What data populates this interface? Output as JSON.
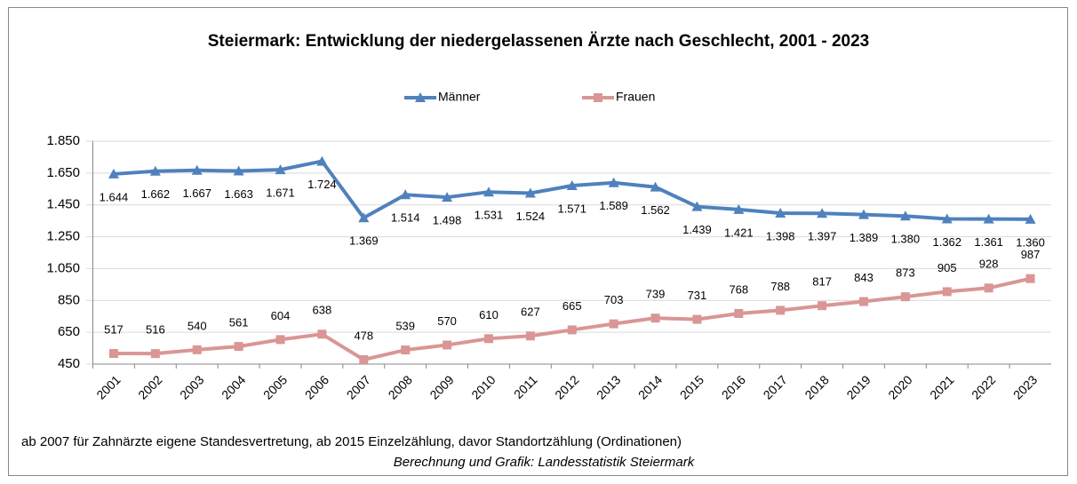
{
  "chart_data": {
    "type": "line",
    "title": "Steiermark: Entwicklung der niedergelassenen Ärzte nach Geschlecht, 2001 - 2023",
    "categories": [
      "2001",
      "2002",
      "2003",
      "2004",
      "2005",
      "2006",
      "2007",
      "2008",
      "2009",
      "2010",
      "2011",
      "2012",
      "2013",
      "2014",
      "2015",
      "2016",
      "2017",
      "2018",
      "2019",
      "2020",
      "2021",
      "2022",
      "2023"
    ],
    "series": [
      {
        "name": "Männer",
        "color": "#4f81bd",
        "marker": "triangle",
        "values": [
          1644,
          1662,
          1667,
          1663,
          1671,
          1724,
          1369,
          1514,
          1498,
          1531,
          1524,
          1571,
          1589,
          1562,
          1439,
          1421,
          1398,
          1397,
          1389,
          1380,
          1362,
          1361,
          1360
        ],
        "value_labels": [
          "1.644",
          "1.662",
          "1.667",
          "1.663",
          "1.671",
          "1.724",
          "1.369",
          "1.514",
          "1.498",
          "1.531",
          "1.524",
          "1.571",
          "1.589",
          "1.562",
          "1.439",
          "1.421",
          "1.398",
          "1.397",
          "1.389",
          "1.380",
          "1.362",
          "1.361",
          "1.360"
        ]
      },
      {
        "name": "Frauen",
        "color": "#d99694",
        "marker": "square",
        "values": [
          517,
          516,
          540,
          561,
          604,
          638,
          478,
          539,
          570,
          610,
          627,
          665,
          703,
          739,
          731,
          768,
          788,
          817,
          843,
          873,
          905,
          928,
          987
        ]
      }
    ],
    "ylim": [
      450,
      1850
    ],
    "yticks": [
      450,
      650,
      850,
      {
        "value": 1050,
        "label": "1.050"
      },
      {
        "value": 1250,
        "label": "1.250"
      },
      {
        "value": 1450,
        "label": "1.450"
      },
      {
        "value": 1650,
        "label": "1.650"
      },
      {
        "value": 1850,
        "label": "1.850"
      }
    ],
    "grid": true,
    "legend": "top",
    "notes": [
      "ab 2007 für Zahnärzte eigene Standesvertretung, ab 2015 Einzelzählung, davor Standortzählung (Ordinationen)",
      "Berechnung und Grafik: Landesstatistik Steiermark"
    ]
  }
}
